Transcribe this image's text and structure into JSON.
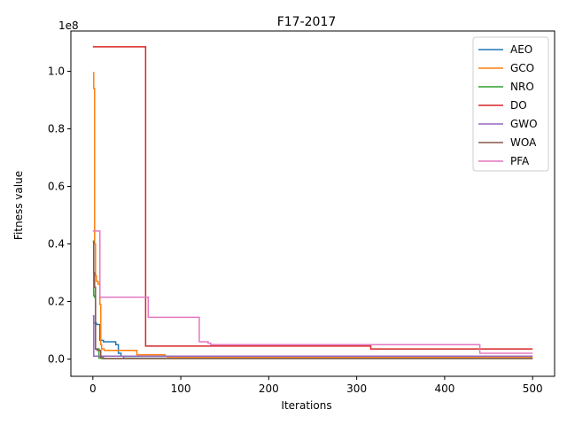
{
  "chart_data": {
    "type": "line",
    "title": "F17-2017",
    "xlabel": "Iterations",
    "ylabel": "Fitness value",
    "y_scale_label": "1e8",
    "xlim": [
      -25,
      525
    ],
    "ylim": [
      -6000000,
      114000000
    ],
    "x_ticks": [
      0,
      100,
      200,
      300,
      400,
      500
    ],
    "x_tick_labels": [
      "0",
      "100",
      "200",
      "300",
      "400",
      "500"
    ],
    "y_ticks": [
      0,
      20000000,
      40000000,
      60000000,
      80000000,
      100000000
    ],
    "y_tick_labels": [
      "0.0",
      "0.2",
      "0.4",
      "0.6",
      "0.8",
      "1.0"
    ],
    "legend_position": "top-right",
    "grid": false,
    "series": [
      {
        "name": "AEO",
        "color": "#1f77b4",
        "x": [
          0,
          1,
          1,
          4,
          4,
          8,
          8,
          12,
          12,
          26,
          26,
          29,
          29,
          32,
          32,
          35,
          35,
          500
        ],
        "y": [
          15000000,
          15000000,
          12500000,
          12500000,
          12000000,
          12000000,
          6500000,
          6500000,
          6000000,
          6000000,
          5000000,
          5000000,
          2000000,
          2000000,
          1000000,
          1000000,
          300000,
          300000
        ]
      },
      {
        "name": "GCO",
        "color": "#ff7f0e",
        "x": [
          0,
          1,
          1,
          2,
          2,
          3,
          3,
          4,
          4,
          6,
          6,
          8,
          8,
          9,
          9,
          10,
          10,
          13,
          13,
          47,
          47,
          50,
          50,
          82,
          82,
          85,
          85,
          500
        ],
        "y": [
          99500000,
          99500000,
          94000000,
          94000000,
          40000000,
          40000000,
          29000000,
          29000000,
          27000000,
          27000000,
          26000000,
          26000000,
          19000000,
          19000000,
          5000000,
          5000000,
          3500000,
          3500000,
          3000000,
          3000000,
          3000000,
          3000000,
          1500000,
          1500000,
          1000000,
          1000000,
          500000,
          500000
        ]
      },
      {
        "name": "NRO",
        "color": "#2ca02c",
        "x": [
          0,
          1,
          1,
          2,
          2,
          3,
          3,
          7,
          7,
          10,
          10,
          500
        ],
        "y": [
          41000000,
          41000000,
          22000000,
          22000000,
          21500000,
          21500000,
          3500000,
          3500000,
          300000,
          300000,
          200000,
          200000
        ]
      },
      {
        "name": "DO",
        "color": "#d62728",
        "x": [
          0,
          60,
          60,
          316,
          316,
          500
        ],
        "y": [
          108500000,
          108500000,
          4500000,
          4500000,
          3500000,
          3500000
        ]
      },
      {
        "name": "GWO",
        "color": "#9467bd",
        "x": [
          0,
          1,
          1,
          500
        ],
        "y": [
          15000000,
          15000000,
          1000000,
          1000000
        ]
      },
      {
        "name": "WOA",
        "color": "#8c564b",
        "x": [
          0,
          1,
          1,
          2,
          2,
          3,
          3,
          5,
          5,
          9,
          9,
          12,
          12,
          500
        ],
        "y": [
          40500000,
          40500000,
          30000000,
          30000000,
          25000000,
          25000000,
          3500000,
          3500000,
          3000000,
          3000000,
          500000,
          500000,
          200000,
          200000
        ]
      },
      {
        "name": "PFA",
        "color": "#e377c2",
        "x": [
          0,
          8,
          8,
          61,
          61,
          63,
          63,
          119,
          119,
          121,
          121,
          131,
          131,
          134,
          134,
          440,
          440,
          500
        ],
        "y": [
          44500000,
          44500000,
          21500000,
          21500000,
          21500000,
          21500000,
          14500000,
          14500000,
          14500000,
          14500000,
          6000000,
          6000000,
          5500000,
          5500000,
          5000000,
          5000000,
          2000000,
          2000000
        ]
      }
    ]
  }
}
